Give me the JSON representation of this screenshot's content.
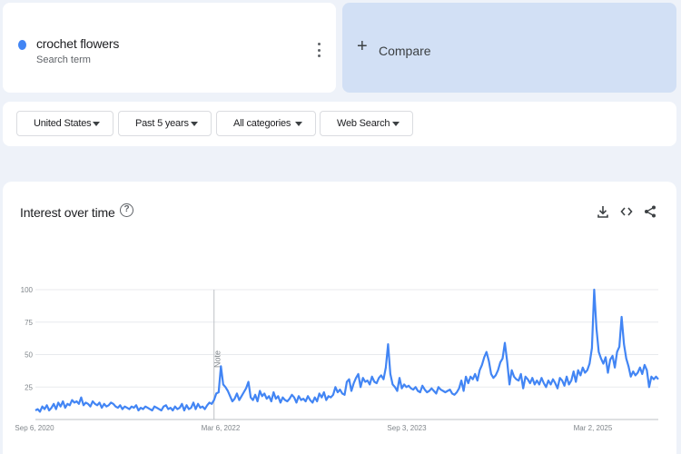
{
  "term": {
    "name": "crochet flowers",
    "subtitle": "Search term",
    "color": "#4285f4"
  },
  "compare": {
    "label": "Compare"
  },
  "filters": {
    "region": "United States",
    "time": "Past 5 years",
    "category": "All categories",
    "property": "Web Search"
  },
  "chart_section": {
    "title": "Interest over time",
    "help": "?"
  },
  "chart_data": {
    "type": "line",
    "title": "Interest over time",
    "series": [
      {
        "name": "crochet flowers",
        "color": "#4285f4",
        "values": [
          7,
          8,
          6,
          10,
          8,
          11,
          7,
          9,
          12,
          8,
          13,
          10,
          14,
          9,
          12,
          11,
          15,
          13,
          14,
          12,
          17,
          11,
          13,
          12,
          10,
          14,
          12,
          11,
          13,
          9,
          12,
          10,
          11,
          13,
          12,
          10,
          9,
          11,
          8,
          10,
          9,
          8,
          10,
          9,
          11,
          7,
          9,
          8,
          10,
          9,
          8,
          7,
          10,
          9,
          8,
          7,
          10,
          11,
          8,
          9,
          7,
          10,
          8,
          9,
          12,
          7,
          11,
          8,
          9,
          13,
          8,
          12,
          9,
          10,
          8,
          11,
          13,
          12,
          15,
          20,
          21,
          41,
          27,
          25,
          22,
          18,
          14,
          16,
          20,
          15,
          18,
          21,
          24,
          29,
          17,
          15,
          19,
          14,
          22,
          18,
          20,
          16,
          18,
          14,
          21,
          16,
          18,
          13,
          17,
          15,
          14,
          16,
          19,
          17,
          13,
          18,
          15,
          16,
          14,
          18,
          15,
          13,
          17,
          14,
          20,
          17,
          21,
          15,
          18,
          17,
          19,
          25,
          21,
          23,
          20,
          19,
          29,
          31,
          22,
          28,
          32,
          35,
          25,
          32,
          29,
          30,
          27,
          33,
          29,
          28,
          32,
          34,
          31,
          40,
          58,
          35,
          27,
          25,
          22,
          32,
          24,
          27,
          25,
          26,
          24,
          23,
          25,
          22,
          21,
          26,
          23,
          21,
          22,
          24,
          22,
          20,
          25,
          23,
          22,
          21,
          22,
          23,
          20,
          19,
          21,
          24,
          30,
          22,
          33,
          28,
          33,
          31,
          35,
          30,
          38,
          42,
          48,
          52,
          45,
          35,
          32,
          34,
          38,
          44,
          47,
          59,
          45,
          27,
          38,
          33,
          31,
          30,
          35,
          24,
          33,
          31,
          28,
          32,
          27,
          30,
          27,
          32,
          28,
          25,
          30,
          27,
          31,
          28,
          24,
          32,
          30,
          26,
          33,
          27,
          30,
          37,
          29,
          38,
          34,
          40,
          36,
          38,
          43,
          55,
          100,
          70,
          52,
          47,
          43,
          48,
          36,
          46,
          49,
          40,
          52,
          56,
          79,
          58,
          47,
          41,
          33,
          37,
          34,
          36,
          40,
          35,
          42,
          38,
          25,
          33,
          31,
          33,
          31
        ]
      }
    ],
    "x_ticks": [
      "Sep 6, 2020",
      "Mar 6, 2022",
      "Sep 3, 2023",
      "Mar 2, 2025"
    ],
    "y_ticks": [
      25,
      50,
      75,
      100
    ],
    "ylim": [
      0,
      100
    ],
    "annotation": {
      "label": "Note"
    },
    "grid": true
  }
}
